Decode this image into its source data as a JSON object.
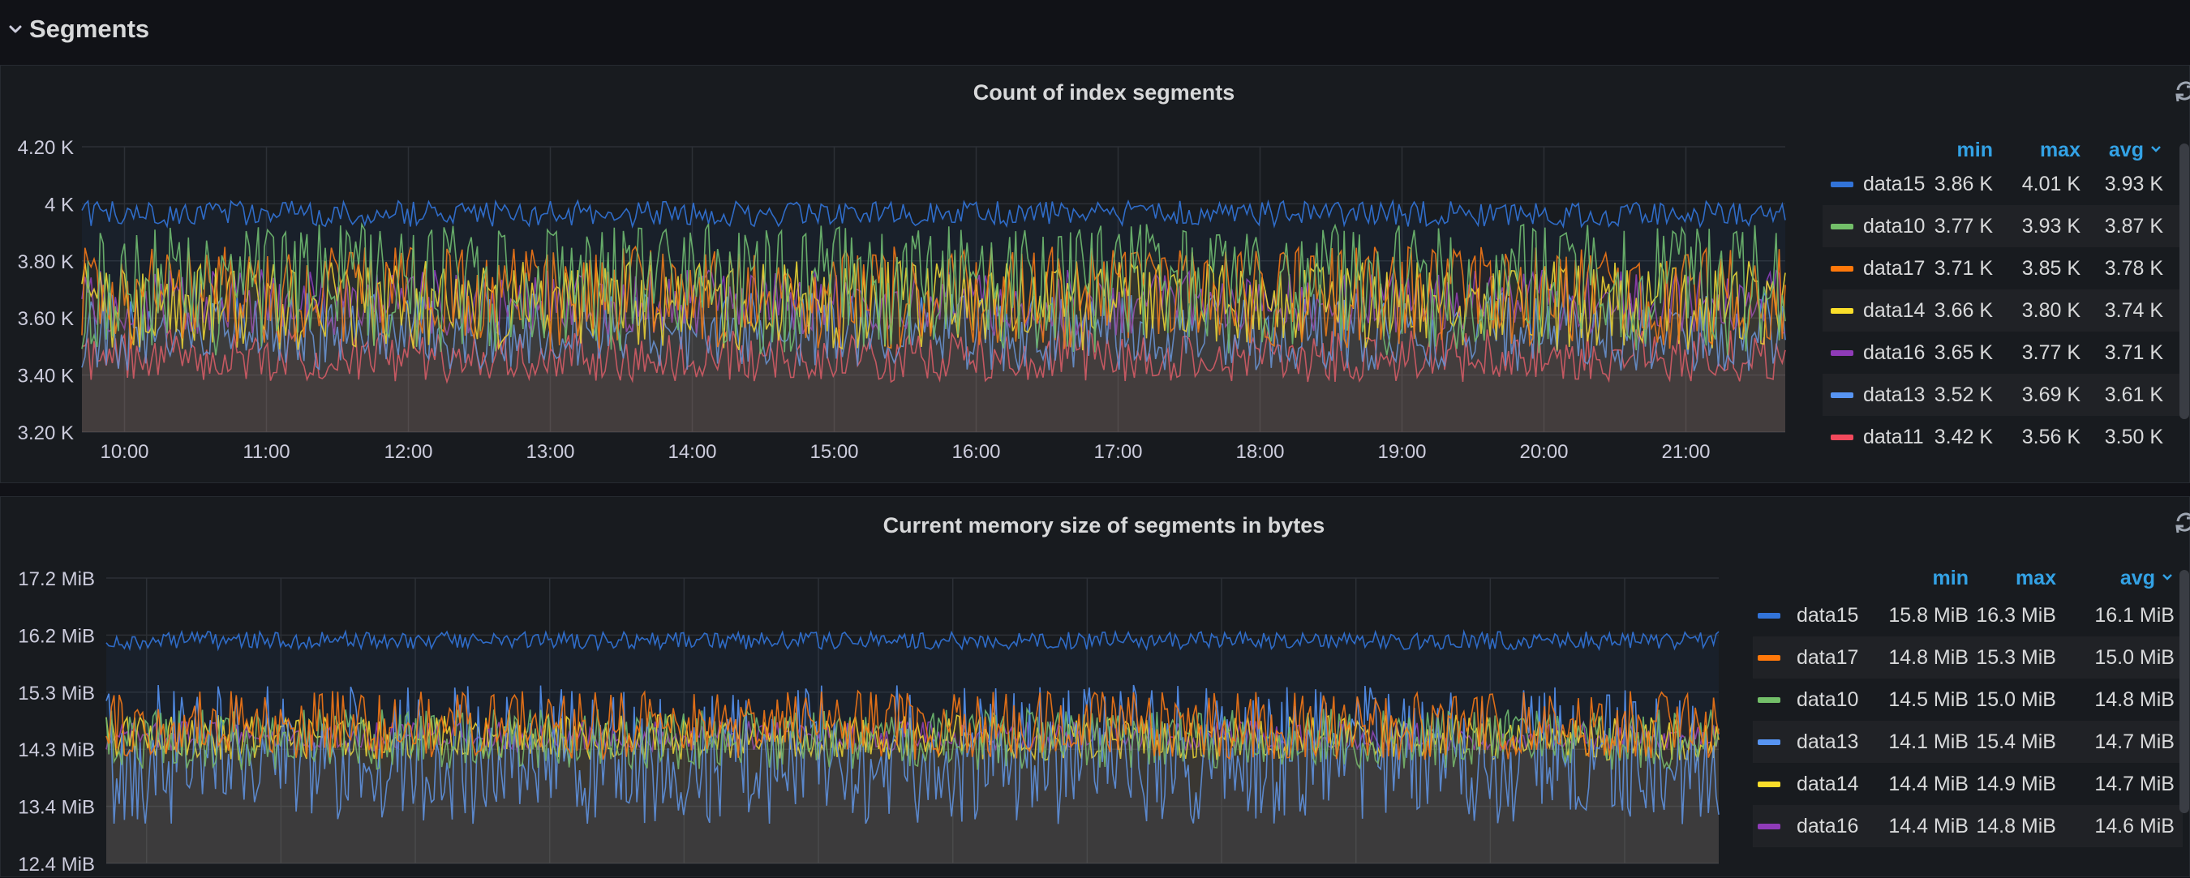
{
  "row": {
    "title": "Segments",
    "chevron_icon": "chevron-down-icon"
  },
  "colors": {
    "data15": "#3274d9",
    "data10": "#73bf69",
    "data17": "#ff780a",
    "data14": "#fade2a",
    "data16": "#8f3bb8",
    "data13": "#5794f2",
    "data11": "#f2495c",
    "accent": "#33a2e5"
  },
  "panels": [
    {
      "title": "Count of index segments",
      "refresh_icon": "refresh-icon",
      "chart_data": {
        "type": "line",
        "title": "Count of index segments",
        "x_ticks": [
          "10:00",
          "11:00",
          "12:00",
          "13:00",
          "14:00",
          "15:00",
          "16:00",
          "17:00",
          "18:00",
          "19:00",
          "20:00",
          "21:00"
        ],
        "x_range_hours": [
          9.7,
          21.7
        ],
        "y_ticks": [
          "4.20 K",
          "4 K",
          "3.80 K",
          "3.60 K",
          "3.40 K",
          "3.20 K"
        ],
        "ylim": [
          3200,
          4200
        ],
        "grid": true,
        "legend_placement": "right",
        "legend_columns": [
          "min",
          "max",
          "avg"
        ],
        "sort_indicator_icon": "chevron-down-icon",
        "series": [
          {
            "name": "data15",
            "min": "3.86 K",
            "max": "4.01 K",
            "avg": "3.93 K",
            "min_v": 3860,
            "max_v": 4010,
            "avg_v": 3930
          },
          {
            "name": "data10",
            "min": "3.77 K",
            "max": "3.93 K",
            "avg": "3.87 K",
            "min_v": 3770,
            "max_v": 3930,
            "avg_v": 3870
          },
          {
            "name": "data17",
            "min": "3.71 K",
            "max": "3.85 K",
            "avg": "3.78 K",
            "min_v": 3710,
            "max_v": 3850,
            "avg_v": 3780
          },
          {
            "name": "data14",
            "min": "3.66 K",
            "max": "3.80 K",
            "avg": "3.74 K",
            "min_v": 3660,
            "max_v": 3800,
            "avg_v": 3740
          },
          {
            "name": "data16",
            "min": "3.65 K",
            "max": "3.77 K",
            "avg": "3.71 K",
            "min_v": 3650,
            "max_v": 3770,
            "avg_v": 3710
          },
          {
            "name": "data13",
            "min": "3.52 K",
            "max": "3.69 K",
            "avg": "3.61 K",
            "min_v": 3520,
            "max_v": 3690,
            "avg_v": 3610
          },
          {
            "name": "data11",
            "min": "3.42 K",
            "max": "3.56 K",
            "avg": "3.50 K",
            "min_v": 3420,
            "max_v": 3560,
            "avg_v": 3500
          }
        ]
      }
    },
    {
      "title": "Current memory size of segments in bytes",
      "refresh_icon": "refresh-icon",
      "chart_data": {
        "type": "line",
        "title": "Current memory size of segments in bytes",
        "x_range_hours": [
          9.7,
          21.7
        ],
        "y_ticks": [
          "17.2 MiB",
          "16.2 MiB",
          "15.3 MiB",
          "14.3 MiB",
          "13.4 MiB",
          "12.4 MiB"
        ],
        "ylim": [
          12.4,
          17.2
        ],
        "grid": true,
        "legend_placement": "right",
        "legend_columns": [
          "min",
          "max",
          "avg"
        ],
        "sort_indicator_icon": "chevron-down-icon",
        "series": [
          {
            "name": "data15",
            "min": "15.8 MiB",
            "max": "16.3 MiB",
            "avg": "16.1 MiB",
            "min_v": 15.8,
            "max_v": 16.3,
            "avg_v": 16.1
          },
          {
            "name": "data17",
            "min": "14.8 MiB",
            "max": "15.3 MiB",
            "avg": "15.0 MiB",
            "min_v": 14.8,
            "max_v": 15.3,
            "avg_v": 15.0
          },
          {
            "name": "data10",
            "min": "14.5 MiB",
            "max": "15.0 MiB",
            "avg": "14.8 MiB",
            "min_v": 14.5,
            "max_v": 15.0,
            "avg_v": 14.8
          },
          {
            "name": "data13",
            "min": "14.1 MiB",
            "max": "15.4 MiB",
            "avg": "14.7 MiB",
            "min_v": 14.1,
            "max_v": 15.4,
            "avg_v": 14.7
          },
          {
            "name": "data14",
            "min": "14.4 MiB",
            "max": "14.9 MiB",
            "avg": "14.7 MiB",
            "min_v": 14.4,
            "max_v": 14.9,
            "avg_v": 14.7
          },
          {
            "name": "data16",
            "min": "14.4 MiB",
            "max": "14.8 MiB",
            "avg": "14.6 MiB",
            "min_v": 14.4,
            "max_v": 14.8,
            "avg_v": 14.6
          }
        ]
      }
    }
  ]
}
